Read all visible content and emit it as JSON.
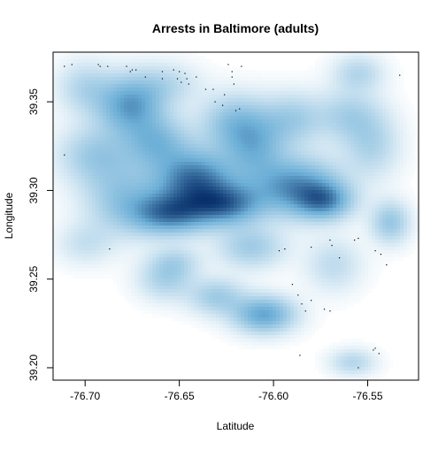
{
  "chart_data": {
    "type": "heatmap",
    "title": "Arrests in Baltimore (adults)",
    "xlabel": "Latitude",
    "ylabel": "Longitude",
    "xlim": [
      -76.717,
      -76.523
    ],
    "ylim": [
      39.193,
      39.378
    ],
    "x_ticks": [
      {
        "value": -76.7,
        "label": "-76.70"
      },
      {
        "value": -76.65,
        "label": "-76.65"
      },
      {
        "value": -76.6,
        "label": "-76.60"
      },
      {
        "value": -76.55,
        "label": "-76.55"
      }
    ],
    "y_ticks": [
      {
        "value": 39.2,
        "label": "39.20"
      },
      {
        "value": 39.25,
        "label": "39.25"
      },
      {
        "value": 39.3,
        "label": "39.30"
      },
      {
        "value": 39.35,
        "label": "39.35"
      }
    ],
    "color_scale": [
      "#ffffff",
      "#08306b"
    ],
    "density_blobs": [
      {
        "x": -76.642,
        "y": 39.306,
        "sx": 0.014,
        "sy": 0.011,
        "w": 1.0
      },
      {
        "x": -76.655,
        "y": 39.287,
        "sx": 0.014,
        "sy": 0.008,
        "w": 0.92
      },
      {
        "x": -76.625,
        "y": 39.292,
        "sx": 0.013,
        "sy": 0.008,
        "w": 0.88
      },
      {
        "x": -76.588,
        "y": 39.302,
        "sx": 0.016,
        "sy": 0.011,
        "w": 0.85
      },
      {
        "x": -76.573,
        "y": 39.294,
        "sx": 0.01,
        "sy": 0.007,
        "w": 0.7
      },
      {
        "x": -76.676,
        "y": 39.348,
        "sx": 0.012,
        "sy": 0.011,
        "w": 0.78
      },
      {
        "x": -76.662,
        "y": 39.327,
        "sx": 0.012,
        "sy": 0.01,
        "w": 0.55
      },
      {
        "x": -76.68,
        "y": 39.296,
        "sx": 0.014,
        "sy": 0.014,
        "w": 0.45
      },
      {
        "x": -76.695,
        "y": 39.32,
        "sx": 0.013,
        "sy": 0.011,
        "w": 0.4
      },
      {
        "x": -76.61,
        "y": 39.325,
        "sx": 0.011,
        "sy": 0.013,
        "w": 0.55
      },
      {
        "x": -76.622,
        "y": 39.338,
        "sx": 0.012,
        "sy": 0.011,
        "w": 0.45
      },
      {
        "x": -76.59,
        "y": 39.34,
        "sx": 0.011,
        "sy": 0.01,
        "w": 0.38
      },
      {
        "x": -76.56,
        "y": 39.342,
        "sx": 0.012,
        "sy": 0.01,
        "w": 0.35
      },
      {
        "x": -76.548,
        "y": 39.325,
        "sx": 0.01,
        "sy": 0.012,
        "w": 0.32
      },
      {
        "x": -76.555,
        "y": 39.366,
        "sx": 0.009,
        "sy": 0.007,
        "w": 0.3
      },
      {
        "x": -76.7,
        "y": 39.358,
        "sx": 0.01,
        "sy": 0.01,
        "w": 0.3
      },
      {
        "x": -76.657,
        "y": 39.36,
        "sx": 0.012,
        "sy": 0.008,
        "w": 0.25
      },
      {
        "x": -76.538,
        "y": 39.282,
        "sx": 0.007,
        "sy": 0.008,
        "w": 0.45
      },
      {
        "x": -76.605,
        "y": 39.23,
        "sx": 0.011,
        "sy": 0.007,
        "w": 0.75
      },
      {
        "x": -76.63,
        "y": 39.24,
        "sx": 0.01,
        "sy": 0.007,
        "w": 0.4
      },
      {
        "x": -76.657,
        "y": 39.25,
        "sx": 0.01,
        "sy": 0.008,
        "w": 0.35
      },
      {
        "x": -76.652,
        "y": 39.26,
        "sx": 0.009,
        "sy": 0.006,
        "w": 0.25
      },
      {
        "x": -76.558,
        "y": 39.203,
        "sx": 0.008,
        "sy": 0.005,
        "w": 0.3
      },
      {
        "x": -76.568,
        "y": 39.258,
        "sx": 0.01,
        "sy": 0.01,
        "w": 0.25
      },
      {
        "x": -76.612,
        "y": 39.268,
        "sx": 0.012,
        "sy": 0.008,
        "w": 0.4
      },
      {
        "x": -76.7,
        "y": 39.27,
        "sx": 0.01,
        "sy": 0.008,
        "w": 0.2
      }
    ],
    "points": [
      {
        "x": -76.711,
        "y": 39.37
      },
      {
        "x": -76.707,
        "y": 39.371
      },
      {
        "x": -76.693,
        "y": 39.371
      },
      {
        "x": -76.692,
        "y": 39.37
      },
      {
        "x": -76.688,
        "y": 39.37
      },
      {
        "x": -76.678,
        "y": 39.37
      },
      {
        "x": -76.676,
        "y": 39.367
      },
      {
        "x": -76.675,
        "y": 39.368
      },
      {
        "x": -76.673,
        "y": 39.368
      },
      {
        "x": -76.668,
        "y": 39.364
      },
      {
        "x": -76.659,
        "y": 39.367
      },
      {
        "x": -76.659,
        "y": 39.363
      },
      {
        "x": -76.653,
        "y": 39.368
      },
      {
        "x": -76.65,
        "y": 39.367
      },
      {
        "x": -76.651,
        "y": 39.363
      },
      {
        "x": -76.649,
        "y": 39.361
      },
      {
        "x": -76.647,
        "y": 39.366
      },
      {
        "x": -76.646,
        "y": 39.363
      },
      {
        "x": -76.645,
        "y": 39.36
      },
      {
        "x": -76.641,
        "y": 39.364
      },
      {
        "x": -76.636,
        "y": 39.357
      },
      {
        "x": -76.632,
        "y": 39.357
      },
      {
        "x": -76.624,
        "y": 39.371
      },
      {
        "x": -76.622,
        "y": 39.367
      },
      {
        "x": -76.622,
        "y": 39.364
      },
      {
        "x": -76.621,
        "y": 39.36
      },
      {
        "x": -76.617,
        "y": 39.37
      },
      {
        "x": -76.631,
        "y": 39.35
      },
      {
        "x": -76.627,
        "y": 39.348
      },
      {
        "x": -76.626,
        "y": 39.354
      },
      {
        "x": -76.62,
        "y": 39.345
      },
      {
        "x": -76.618,
        "y": 39.346
      },
      {
        "x": -76.533,
        "y": 39.365
      },
      {
        "x": -76.711,
        "y": 39.32
      },
      {
        "x": -76.687,
        "y": 39.267
      },
      {
        "x": -76.597,
        "y": 39.266
      },
      {
        "x": -76.594,
        "y": 39.267
      },
      {
        "x": -76.58,
        "y": 39.268
      },
      {
        "x": -76.57,
        "y": 39.272
      },
      {
        "x": -76.569,
        "y": 39.269
      },
      {
        "x": -76.565,
        "y": 39.262
      },
      {
        "x": -76.557,
        "y": 39.272
      },
      {
        "x": -76.555,
        "y": 39.273
      },
      {
        "x": -76.546,
        "y": 39.266
      },
      {
        "x": -76.543,
        "y": 39.264
      },
      {
        "x": -76.54,
        "y": 39.258
      },
      {
        "x": -76.59,
        "y": 39.247
      },
      {
        "x": -76.587,
        "y": 39.241
      },
      {
        "x": -76.585,
        "y": 39.236
      },
      {
        "x": -76.583,
        "y": 39.232
      },
      {
        "x": -76.58,
        "y": 39.238
      },
      {
        "x": -76.573,
        "y": 39.233
      },
      {
        "x": -76.57,
        "y": 39.232
      },
      {
        "x": -76.586,
        "y": 39.207
      },
      {
        "x": -76.547,
        "y": 39.21
      },
      {
        "x": -76.546,
        "y": 39.211
      },
      {
        "x": -76.544,
        "y": 39.208
      },
      {
        "x": -76.555,
        "y": 39.2
      }
    ]
  }
}
